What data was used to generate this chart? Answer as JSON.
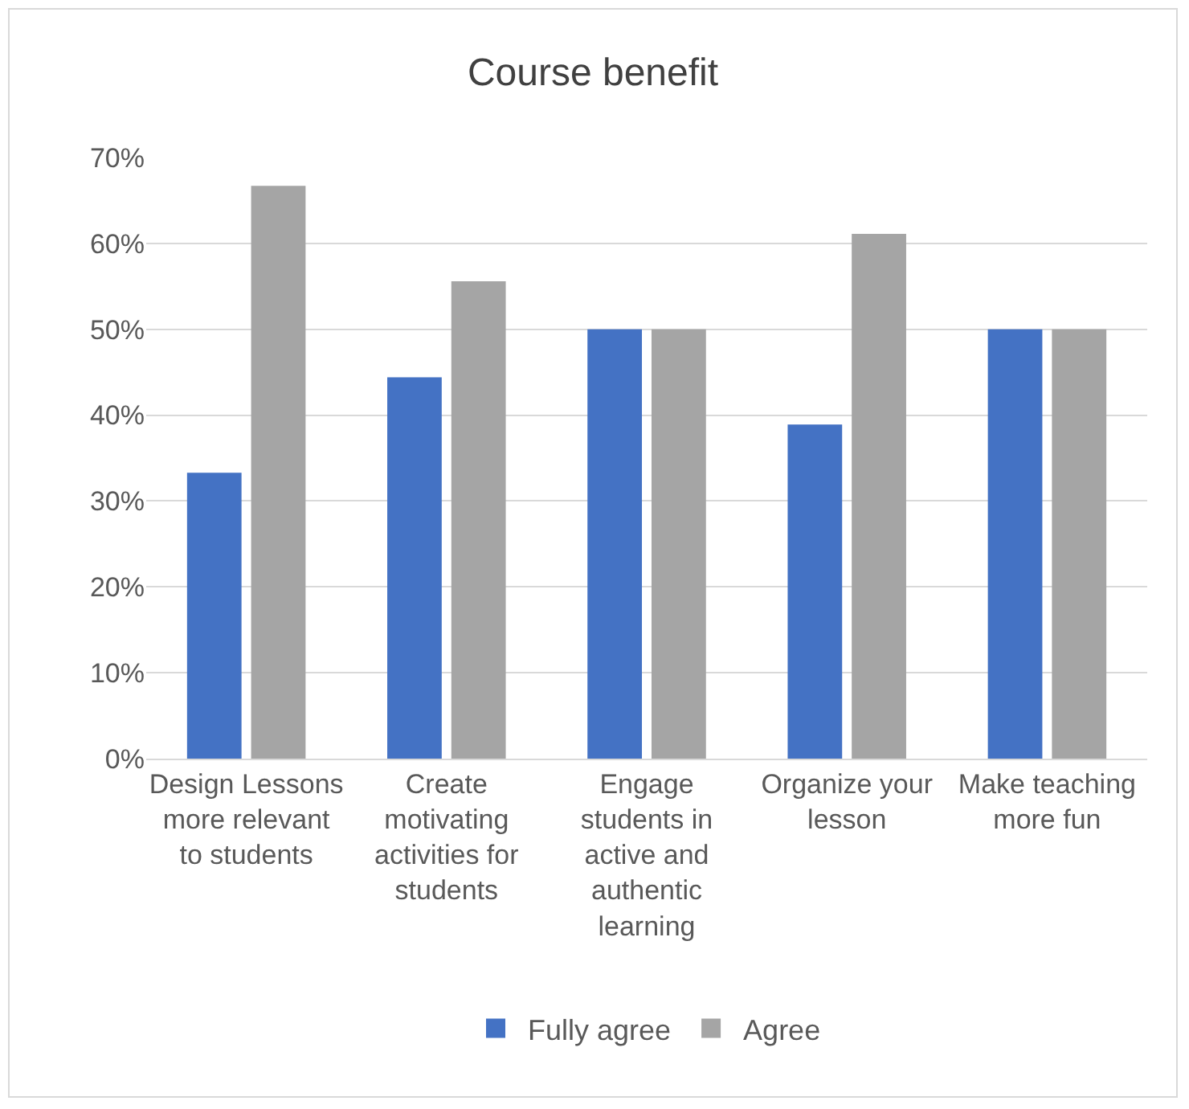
{
  "chart_data": {
    "type": "bar",
    "title": "Course benefit",
    "categories": [
      "Design Lessons more relevant to students",
      "Create motivating activities for students",
      "Engage students in active and authentic learning",
      "Organize your lesson",
      "Make teaching more fun"
    ],
    "series": [
      {
        "name": "Fully agree",
        "color": "#4472c4",
        "values": [
          33.3,
          44.4,
          50,
          38.9,
          50
        ]
      },
      {
        "name": "Agree",
        "color": "#a5a5a5",
        "values": [
          66.7,
          55.6,
          50,
          61.1,
          50
        ]
      }
    ],
    "ylim": [
      0,
      70
    ],
    "yticks": [
      {
        "value": 0,
        "label": "0%"
      },
      {
        "value": 10,
        "label": "10%"
      },
      {
        "value": 20,
        "label": "20%"
      },
      {
        "value": 30,
        "label": "30%"
      },
      {
        "value": 40,
        "label": "40%"
      },
      {
        "value": 50,
        "label": "50%"
      },
      {
        "value": 60,
        "label": "60%"
      },
      {
        "value": 70,
        "label": "70%"
      }
    ],
    "grid": "y",
    "legend": "bottom"
  }
}
